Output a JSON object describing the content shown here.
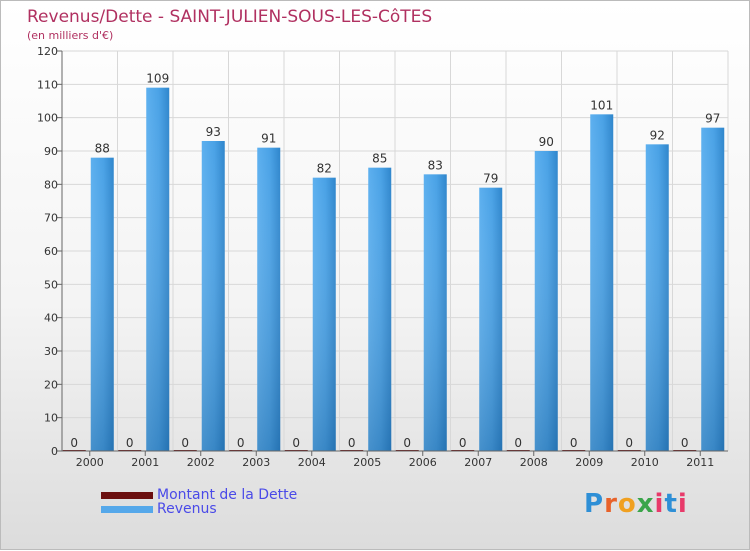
{
  "chart_data": {
    "type": "bar",
    "title": "Revenus/Dette - SAINT-JULIEN-SOUS-LES-CôTES",
    "subtitle": "(en milliers d'€)",
    "categories": [
      "2000",
      "2001",
      "2002",
      "2003",
      "2004",
      "2005",
      "2006",
      "2007",
      "2008",
      "2009",
      "2010",
      "2011"
    ],
    "series": [
      {
        "name": "Montant de la Dette",
        "color": "#6b0f0f",
        "values": [
          0,
          0,
          0,
          0,
          0,
          0,
          0,
          0,
          0,
          0,
          0,
          0
        ]
      },
      {
        "name": "Revenus",
        "color": "#3d96d9",
        "values": [
          88,
          109,
          93,
          91,
          82,
          85,
          83,
          79,
          90,
          101,
          92,
          97
        ]
      }
    ],
    "ylim": [
      0,
      120
    ],
    "yticks": [
      0,
      10,
      20,
      30,
      40,
      50,
      60,
      70,
      80,
      90,
      100,
      110,
      120
    ],
    "grid": true,
    "legend": "bottom-left"
  },
  "legend": {
    "items": [
      {
        "label": "Montant de la Dette",
        "color": "#6b0f0f"
      },
      {
        "label": "Revenus",
        "color": "#55a8ea"
      }
    ]
  },
  "logo": {
    "letters": [
      "P",
      "r",
      "o",
      "x",
      "i",
      "t",
      "i"
    ],
    "text": "Proxiti"
  }
}
